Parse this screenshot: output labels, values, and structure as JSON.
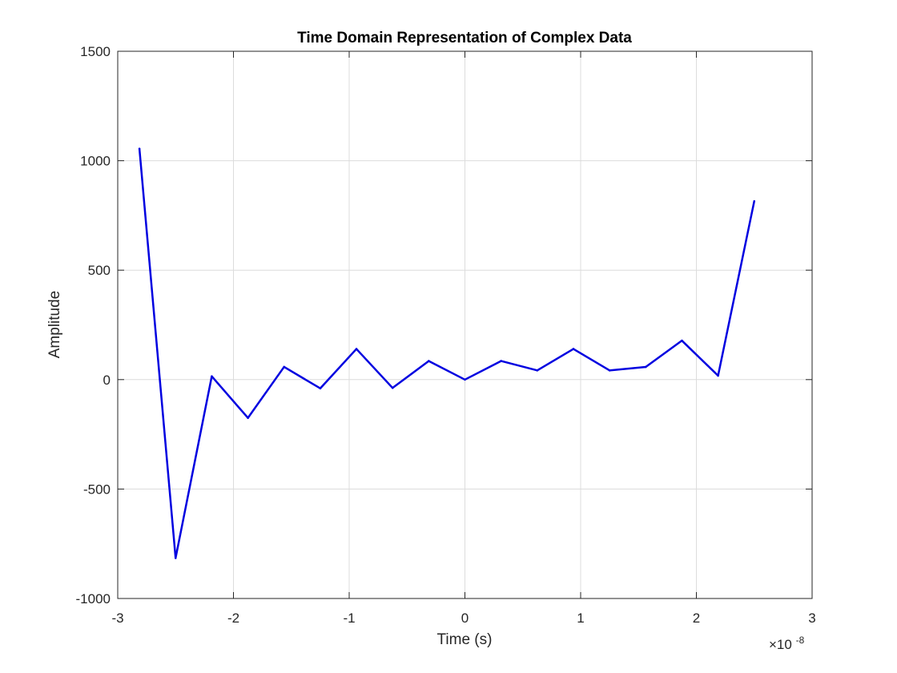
{
  "chart_data": {
    "type": "line",
    "title": "Time Domain Representation of Complex Data",
    "xlabel": "Time (s)",
    "ylabel": "Amplitude",
    "x_exponent_prefix": "×10",
    "x_exponent_power": "-8",
    "xlim": [
      -3e-08,
      3e-08
    ],
    "ylim": [
      -1000,
      1500
    ],
    "grid": true,
    "x_ticks": [
      -3e-08,
      -2e-08,
      -1e-08,
      0,
      1e-08,
      2e-08,
      3e-08
    ],
    "x_tick_labels": [
      "-3",
      "-2",
      "-1",
      "0",
      "1",
      "2",
      "3"
    ],
    "y_ticks": [
      -1000,
      -500,
      0,
      500,
      1000,
      1500
    ],
    "y_tick_labels": [
      "-1000",
      "-500",
      "0",
      "500",
      "1000",
      "1500"
    ],
    "series": [
      {
        "color": "#0000e0",
        "x": [
          -2.8125e-08,
          -2.5e-08,
          -2.1875e-08,
          -1.875e-08,
          -1.5625e-08,
          -1.25e-08,
          -9.375e-09,
          -6.25e-09,
          -3.125e-09,
          0,
          3.125e-09,
          6.25e-09,
          9.375e-09,
          1.25e-08,
          1.5625e-08,
          1.875e-08,
          2.1875e-08,
          2.5e-08
        ],
        "y": [
          1055,
          -815,
          15,
          -175,
          58,
          -40,
          140,
          -38,
          85,
          0,
          85,
          42,
          140,
          42,
          58,
          178,
          18,
          815
        ]
      }
    ]
  }
}
